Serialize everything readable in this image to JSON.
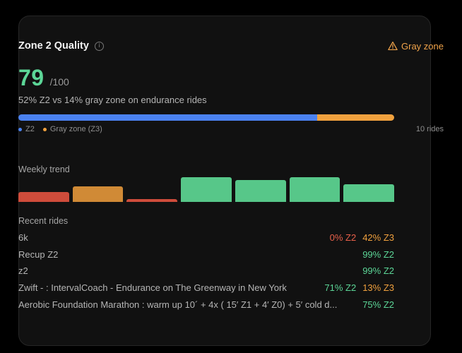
{
  "card": {
    "title": "Zone 2 Quality",
    "info_icon": "info-icon",
    "badge": {
      "icon": "warning-triangle-icon",
      "label": "Gray zone",
      "color": "#f0a34a"
    }
  },
  "score": {
    "value": "79",
    "max": "/100"
  },
  "summary": "52% Z2 vs 14% gray zone on endurance rides",
  "progress": {
    "z2_fraction": 0.795,
    "gray_fraction": 0.205,
    "z2_color": "#4b82f0",
    "gray_color": "#f0a13e"
  },
  "legend": {
    "z2_label": "Z2",
    "gray_label": "Gray zone (Z3)",
    "count": "10 rides"
  },
  "weekly_trend": {
    "label": "Weekly trend",
    "weeks": [
      {
        "value": 0.38,
        "color": "#cf4c3b"
      },
      {
        "value": 0.62,
        "color": "#d08a36"
      },
      {
        "value": 0.12,
        "color": "#cf4c3b"
      },
      {
        "value": 0.97,
        "color": "#57c789"
      },
      {
        "value": 0.85,
        "color": "#57c789"
      },
      {
        "value": 0.97,
        "color": "#57c789"
      },
      {
        "value": 0.7,
        "color": "#57c789"
      }
    ]
  },
  "recent_rides": {
    "label": "Recent rides",
    "items": [
      {
        "name": "6k",
        "z2": "0% Z2",
        "z2_zero": true,
        "z3": "42% Z3"
      },
      {
        "name": "Recup Z2",
        "z2": "99% Z2",
        "z2_zero": false,
        "z3": ""
      },
      {
        "name": "z2",
        "z2": "99% Z2",
        "z2_zero": false,
        "z3": ""
      },
      {
        "name": "Zwift - : IntervalCoach - Endurance on The Greenway in New York",
        "z2": "71% Z2",
        "z2_zero": false,
        "z3": "13% Z3"
      },
      {
        "name": "Aerobic Foundation Marathon : warm up 10´ + 4x ( 15′ Z1 + 4′ Z0) + 5′ cold d...",
        "z2": "75% Z2",
        "z2_zero": false,
        "z3": ""
      }
    ]
  }
}
